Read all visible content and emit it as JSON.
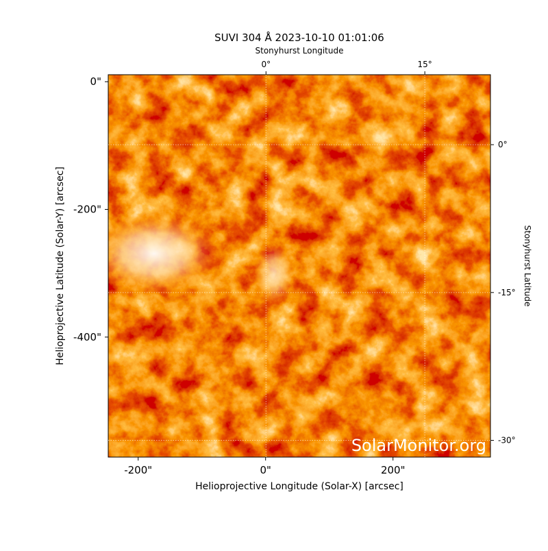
{
  "chart_data": {
    "type": "image",
    "title": "SUVI 304 Å 2023-10-10 01:01:06",
    "x_label": "Helioprojective Longitude (Solar-X) [arcsec]",
    "y_label": "Helioprojective Latitude (Solar-Y) [arcsec]",
    "xlim": [
      -247,
      353
    ],
    "ylim": [
      -588,
      11
    ],
    "xticks": [
      {
        "value": -200,
        "label": "-200\""
      },
      {
        "value": 0,
        "label": "0\""
      },
      {
        "value": 200,
        "label": "200\""
      }
    ],
    "yticks": [
      {
        "value": 0,
        "label": "0\""
      },
      {
        "value": -200,
        "label": "-200\""
      },
      {
        "value": -400,
        "label": "-400\""
      }
    ],
    "x2_label": "Stonyhurst Longitude",
    "x2lim": [
      -14.9,
      21.2
    ],
    "x2ticks": [
      {
        "value": 0,
        "label": "0°"
      },
      {
        "value": 15,
        "label": "15°"
      }
    ],
    "y2_label": "Stonyhurst Latitude",
    "y2lim": [
      -31.7,
      7.1
    ],
    "y2ticks": [
      {
        "value": 0,
        "label": "0°"
      },
      {
        "value": -15,
        "label": "-15°"
      },
      {
        "value": -30,
        "label": "-30°"
      }
    ],
    "grid": true,
    "watermark": "SolarMonitor.org"
  }
}
